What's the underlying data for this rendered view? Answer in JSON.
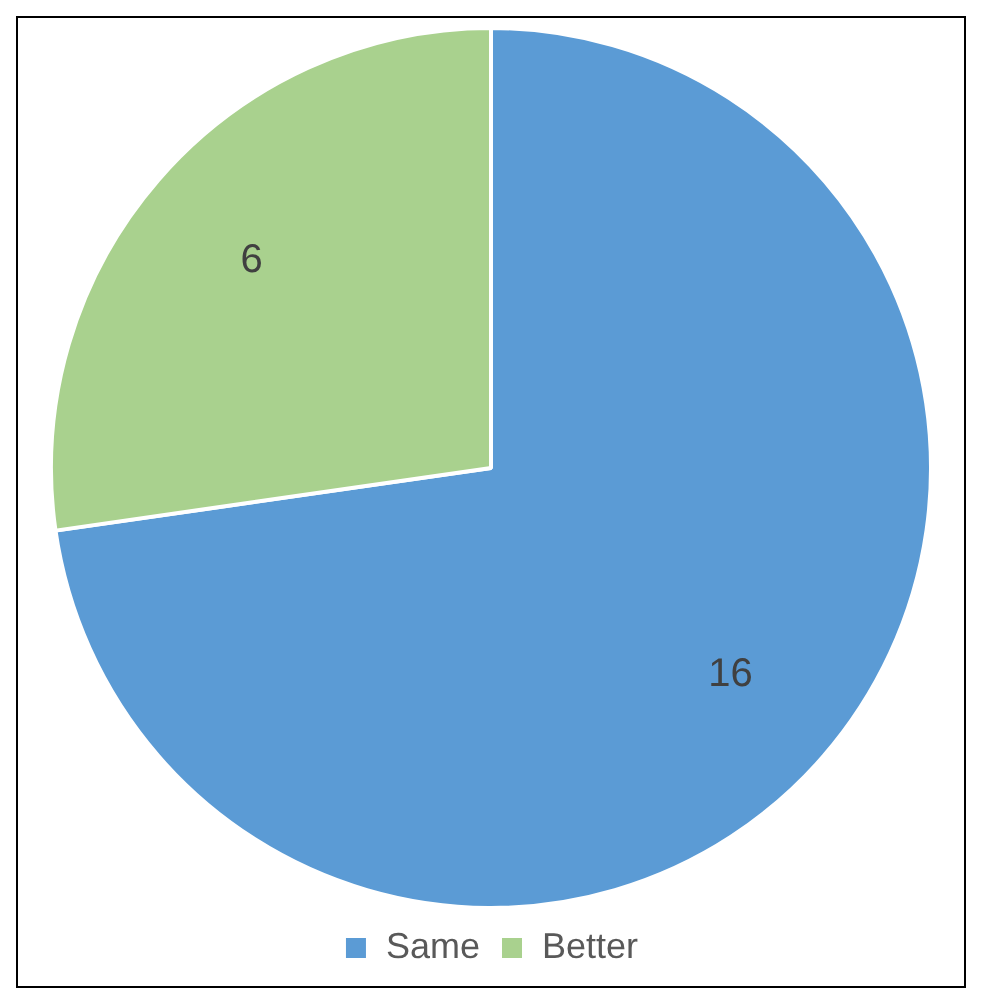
{
  "chart_data": {
    "type": "pie",
    "categories": [
      "Same",
      "Better"
    ],
    "values": [
      16,
      6
    ],
    "colors": [
      "#5b9bd5",
      "#a9d18e"
    ],
    "data_labels": true,
    "legend": "bottom"
  }
}
